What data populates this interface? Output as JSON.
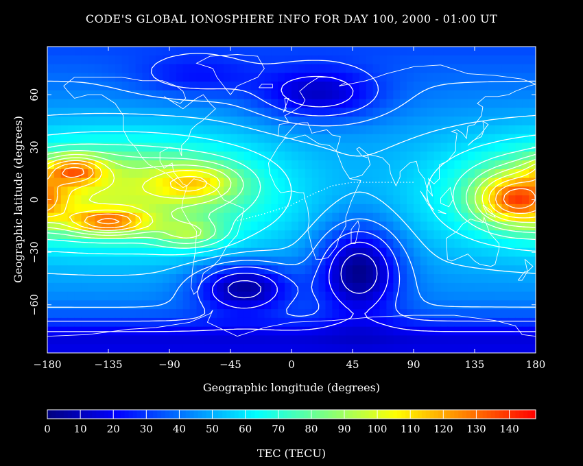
{
  "chart_data": {
    "type": "heatmap",
    "title": "CODE'S GLOBAL IONOSPHERE INFO FOR DAY 100, 2000 - 01:00 UT",
    "xlabel": "Geographic longitude (degrees)",
    "ylabel": "Geographic latitude (degrees)",
    "xlim": [
      -180,
      180
    ],
    "ylim": [
      -87.5,
      87.5
    ],
    "xticks": [
      -180,
      -135,
      -90,
      -45,
      0,
      45,
      90,
      135,
      180
    ],
    "yticks": [
      -60,
      -30,
      0,
      30,
      60
    ],
    "colorbar": {
      "label": "TEC (TECU)",
      "range": [
        0,
        148
      ],
      "ticks": [
        0,
        10,
        20,
        30,
        40,
        50,
        60,
        70,
        80,
        90,
        100,
        110,
        120,
        130,
        140
      ],
      "colors": [
        "#00007f",
        "#0000ff",
        "#007fff",
        "#00ffff",
        "#7fff7f",
        "#ffff00",
        "#ff7f00",
        "#ff0000"
      ]
    },
    "contour_interval": 10,
    "grid": false,
    "features": [
      {
        "name": "max-west-pacific-north",
        "lon": -160,
        "lat": 17,
        "value": 125
      },
      {
        "name": "max-west-pacific-south",
        "lon": -135,
        "lat": -13,
        "value": 135
      },
      {
        "name": "max-east-west-pacific",
        "lon": 165,
        "lat": 0,
        "value": 125
      },
      {
        "name": "min-south-atlantic",
        "lon": -35,
        "lat": -50,
        "value": 5
      },
      {
        "name": "min-indian-ocean",
        "lon": 50,
        "lat": -40,
        "value": 5
      }
    ]
  }
}
